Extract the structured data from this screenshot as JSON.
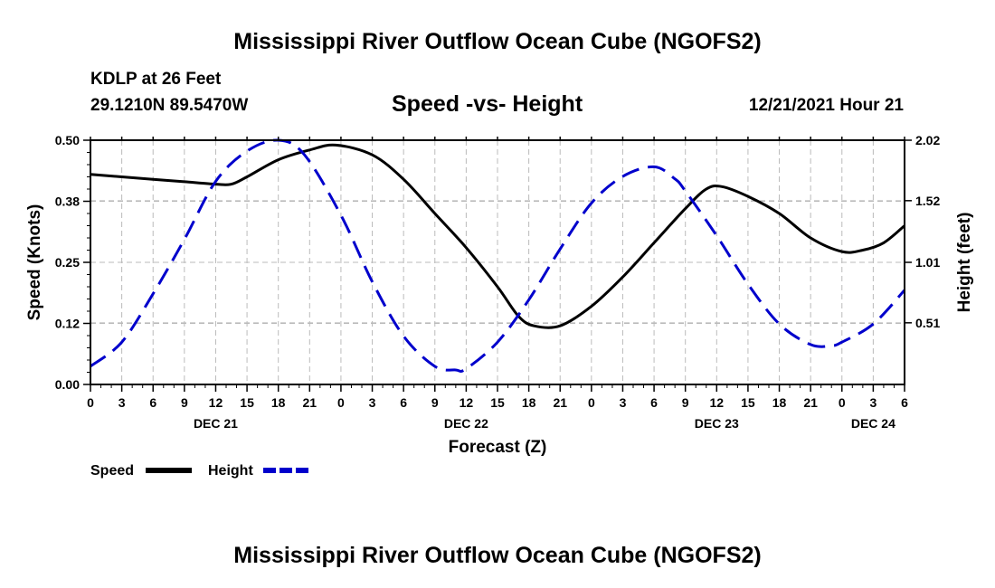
{
  "header": {
    "title": "Mississippi River Outflow Ocean Cube (NGOFS2)",
    "station": "KDLP at 26 Feet",
    "coords": "29.1210N  89.5470W",
    "subtitle": "Speed -vs- Height",
    "date": "12/21/2021 Hour 21"
  },
  "footer": {
    "title": "Mississippi River Outflow Ocean Cube (NGOFS2)"
  },
  "colors": {
    "speed": "#000000",
    "height": "#0000cc",
    "grid": "#bbbbbb"
  },
  "chart_data": {
    "type": "line",
    "title": "Speed -vs- Height",
    "xlabel": "Forecast (Z)",
    "ylabel": "Speed (Knots)",
    "ylabel_right": "Height (feet)",
    "x_unit": "hours since 12/21/2021 00Z",
    "xlim": [
      0,
      78
    ],
    "ylim": [
      0.0,
      0.5
    ],
    "ylim_right": [
      0.0,
      2.02
    ],
    "x_ticks": [
      0,
      3,
      6,
      9,
      12,
      15,
      18,
      21,
      24,
      27,
      30,
      33,
      36,
      39,
      42,
      45,
      48,
      51,
      54,
      57,
      60,
      63,
      66,
      69,
      72,
      75,
      78
    ],
    "x_tick_labels": [
      "0",
      "3",
      "6",
      "9",
      "12",
      "15",
      "18",
      "21",
      "0",
      "3",
      "6",
      "9",
      "12",
      "15",
      "18",
      "21",
      "0",
      "3",
      "6",
      "9",
      "12",
      "15",
      "18",
      "21",
      "0",
      "3",
      "6"
    ],
    "day_labels": [
      {
        "x": 12,
        "label": "DEC 21"
      },
      {
        "x": 36,
        "label": "DEC 22"
      },
      {
        "x": 60,
        "label": "DEC 23"
      },
      {
        "x": 75,
        "label": "DEC 24"
      }
    ],
    "y_ticks_left": [
      0.0,
      0.125,
      0.25,
      0.375,
      0.5
    ],
    "y_tick_labels_left": [
      "0.00",
      "0.12",
      "0.25",
      "0.38",
      "0.50"
    ],
    "y_ticks_right": [
      0.51,
      1.01,
      1.52,
      2.02
    ],
    "y_tick_labels_right": [
      "0.51",
      "1.01",
      "1.52",
      "2.02"
    ],
    "series": [
      {
        "name": "Speed",
        "axis": "left",
        "style": "solid",
        "x": [
          0,
          3,
          6,
          9,
          12,
          13.5,
          15,
          18,
          21,
          23.5,
          27,
          30,
          33,
          36,
          39,
          41,
          42.5,
          45,
          48,
          51,
          54,
          57,
          59,
          60.5,
          63,
          66,
          69,
          72,
          74,
          76,
          78
        ],
        "values": [
          0.43,
          0.425,
          0.42,
          0.415,
          0.41,
          0.41,
          0.425,
          0.46,
          0.48,
          0.49,
          0.47,
          0.42,
          0.35,
          0.28,
          0.2,
          0.14,
          0.12,
          0.12,
          0.16,
          0.22,
          0.29,
          0.36,
          0.4,
          0.405,
          0.385,
          0.35,
          0.3,
          0.272,
          0.275,
          0.29,
          0.325
        ]
      },
      {
        "name": "Height",
        "axis": "right",
        "style": "dashed",
        "x": [
          0,
          3,
          6,
          9,
          12,
          15,
          18,
          20.5,
          24,
          27,
          30,
          33,
          35,
          36,
          39,
          42,
          45,
          48,
          51,
          54,
          56,
          57,
          60,
          63,
          66,
          69,
          71,
          72,
          75,
          78
        ],
        "values": [
          0.15,
          0.35,
          0.75,
          1.2,
          1.68,
          1.93,
          2.02,
          1.9,
          1.4,
          0.85,
          0.4,
          0.15,
          0.12,
          0.13,
          0.35,
          0.7,
          1.12,
          1.5,
          1.72,
          1.8,
          1.7,
          1.6,
          1.23,
          0.83,
          0.5,
          0.33,
          0.32,
          0.35,
          0.5,
          0.78
        ]
      }
    ],
    "legend": [
      {
        "label": "Speed",
        "style": "solid"
      },
      {
        "label": "Height",
        "style": "dashed"
      }
    ],
    "legend_position": "bottom-left",
    "grid": true
  }
}
